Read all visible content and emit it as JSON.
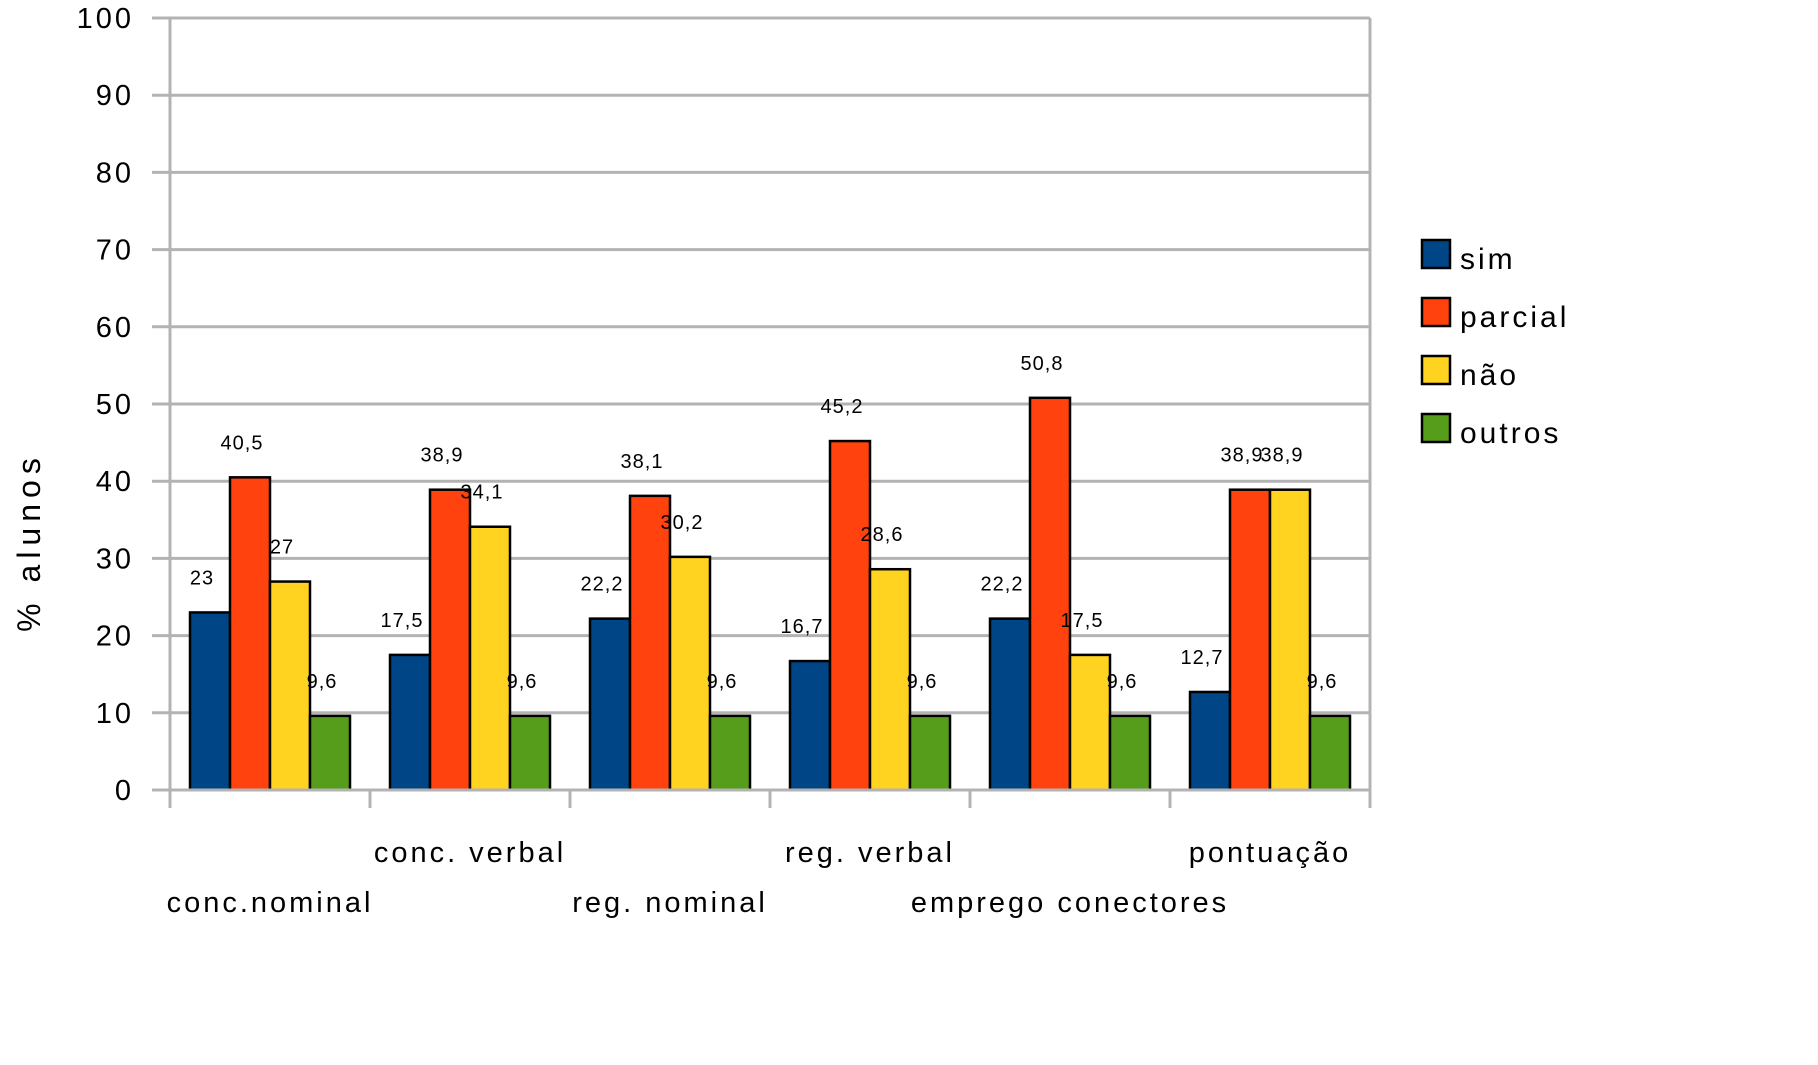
{
  "chart_data": {
    "type": "bar",
    "title": "",
    "xlabel": "",
    "ylabel": "% alunos",
    "ylim": [
      0,
      100
    ],
    "yticks": [
      0,
      10,
      20,
      30,
      40,
      50,
      60,
      70,
      80,
      90,
      100
    ],
    "grid": true,
    "legend_position": "right",
    "categories": [
      "conc.nominal",
      "conc. verbal",
      "reg. nominal",
      "reg. verbal",
      "emprego conectores",
      "pontuação"
    ],
    "series": [
      {
        "name": "sim",
        "color": "#004586",
        "values": [
          23,
          17.5,
          22.2,
          16.7,
          22.2,
          12.7
        ],
        "labels": [
          "23",
          "17,5",
          "22,2",
          "16,7",
          "22,2",
          "12,7"
        ]
      },
      {
        "name": "parcial",
        "color": "#ff420e",
        "values": [
          40.5,
          38.9,
          38.1,
          45.2,
          50.8,
          38.9
        ],
        "labels": [
          "40,5",
          "38,9",
          "38,1",
          "45,2",
          "50,8",
          "38,9"
        ]
      },
      {
        "name": "não",
        "color": "#ffd320",
        "values": [
          27,
          34.1,
          30.2,
          28.6,
          17.5,
          38.9
        ],
        "labels": [
          "27",
          "34,1",
          "30,2",
          "28,6",
          "17,5",
          "38,9"
        ]
      },
      {
        "name": "outros",
        "color": "#579d1c",
        "values": [
          9.6,
          9.6,
          9.6,
          9.6,
          9.6,
          9.6
        ],
        "labels": [
          "9,6",
          "9,6",
          "9,6",
          "9,6",
          "9,6",
          "9,6"
        ]
      }
    ]
  }
}
